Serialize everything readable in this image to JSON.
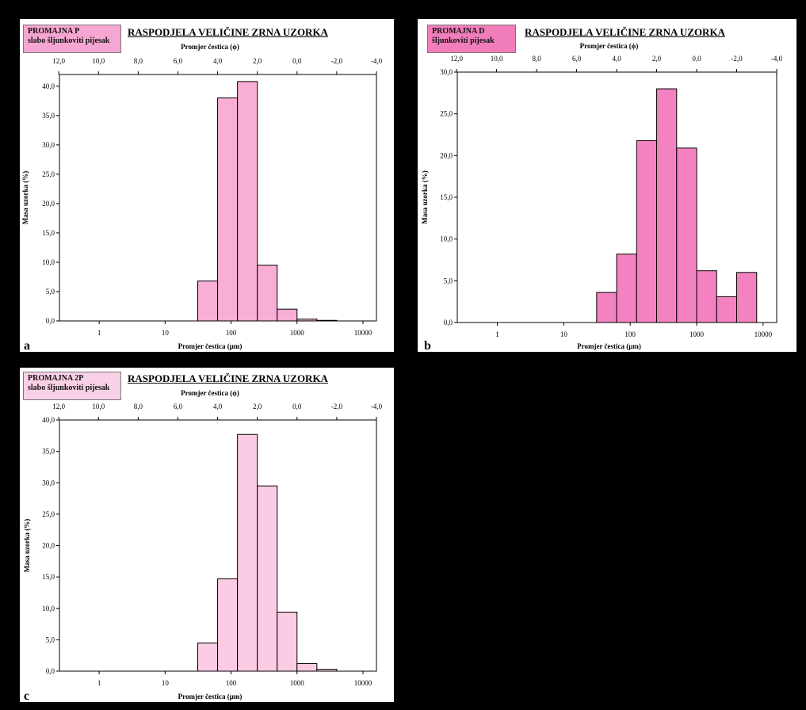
{
  "charts": [
    {
      "letter": "a",
      "sample_line1": "PROMAJNA P",
      "sample_line2": "slabo šljunkoviti pijesak",
      "box_color": "#F6A6D2",
      "bar_color": "#F9AED6"
    },
    {
      "letter": "b",
      "sample_line1": "PROMAJNA D",
      "sample_line2": "šljunkoviti pijesak",
      "box_color": "#F27DBB",
      "bar_color": "#F482C0"
    },
    {
      "letter": "c",
      "sample_line1": "PROMAJNA 2P",
      "sample_line2": "slabo šljunkoviti pijesak",
      "box_color": "#FAD0E6",
      "bar_color": "#FCCBE4"
    }
  ],
  "chart_data": [
    {
      "type": "bar",
      "title": "RASPODJELA VELIČINE ZRNA UZORKA",
      "xlabel": "Promjer čestica (μm)",
      "x2label": "Promjer čestica (ϕ)",
      "ylabel": "Masa uzorka (%)",
      "x_scale": "log",
      "xlim": [
        0.25,
        16000
      ],
      "x_ticks": [
        "1",
        "10",
        "100",
        "1000",
        "10000"
      ],
      "phi_ticks": [
        "12,0",
        "10,0",
        "8,0",
        "6,0",
        "4,0",
        "2,0",
        "0,0",
        "-2,0",
        "-4,0"
      ],
      "ylim": [
        0,
        42
      ],
      "y_ticks": [
        "0,0",
        "5,0",
        "10,0",
        "15,0",
        "20,0",
        "25,0",
        "30,0",
        "35,0",
        "40,0"
      ],
      "bin_edges_um": [
        31.25,
        62.5,
        125,
        250,
        500,
        1000,
        2000,
        4000
      ],
      "values": [
        6.8,
        38.0,
        40.8,
        9.5,
        2.0,
        0.3,
        0.1
      ]
    },
    {
      "type": "bar",
      "title": "RASPODJELA VELIČINE ZRNA UZORKA",
      "xlabel": "Promjer čestica (μm)",
      "x2label": "Promjer čestica (ϕ)",
      "ylabel": "Masa uzorka (%)",
      "x_scale": "log",
      "xlim": [
        0.25,
        16000
      ],
      "x_ticks": [
        "1",
        "10",
        "100",
        "1000",
        "10000"
      ],
      "phi_ticks": [
        "12,0",
        "10,0",
        "8,0",
        "6,0",
        "4,0",
        "2,0",
        "0,0",
        "-2,0",
        "-4,0"
      ],
      "ylim": [
        0,
        30
      ],
      "y_ticks": [
        "0,0",
        "5,0",
        "10,0",
        "15,0",
        "20,0",
        "25,0",
        "30,0"
      ],
      "bin_edges_um": [
        31.25,
        62.5,
        125,
        250,
        500,
        1000,
        2000,
        4000,
        8000
      ],
      "values": [
        3.6,
        8.2,
        21.8,
        28.0,
        20.9,
        6.2,
        3.1,
        6.0
      ]
    },
    {
      "type": "bar",
      "title": "RASPODJELA VELIČINE ZRNA UZORKA",
      "xlabel": "Promjer čestica (μm)",
      "x2label": "Promjer čestica (ϕ)",
      "ylabel": "Masa uzorka (%)",
      "x_scale": "log",
      "xlim": [
        0.25,
        16000
      ],
      "x_ticks": [
        "1",
        "10",
        "100",
        "1000",
        "10000"
      ],
      "phi_ticks": [
        "12,0",
        "10,0",
        "8,0",
        "6,0",
        "4,0",
        "2,0",
        "0,0",
        "-2,0",
        "-4,0"
      ],
      "ylim": [
        0,
        40
      ],
      "y_ticks": [
        "0,0",
        "5,0",
        "10,0",
        "15,0",
        "20,0",
        "25,0",
        "30,0",
        "35,0",
        "40,0"
      ],
      "bin_edges_um": [
        31.25,
        62.5,
        125,
        250,
        500,
        1000,
        2000,
        4000
      ],
      "values": [
        4.5,
        14.7,
        37.7,
        29.5,
        9.4,
        1.2,
        0.3
      ]
    }
  ]
}
